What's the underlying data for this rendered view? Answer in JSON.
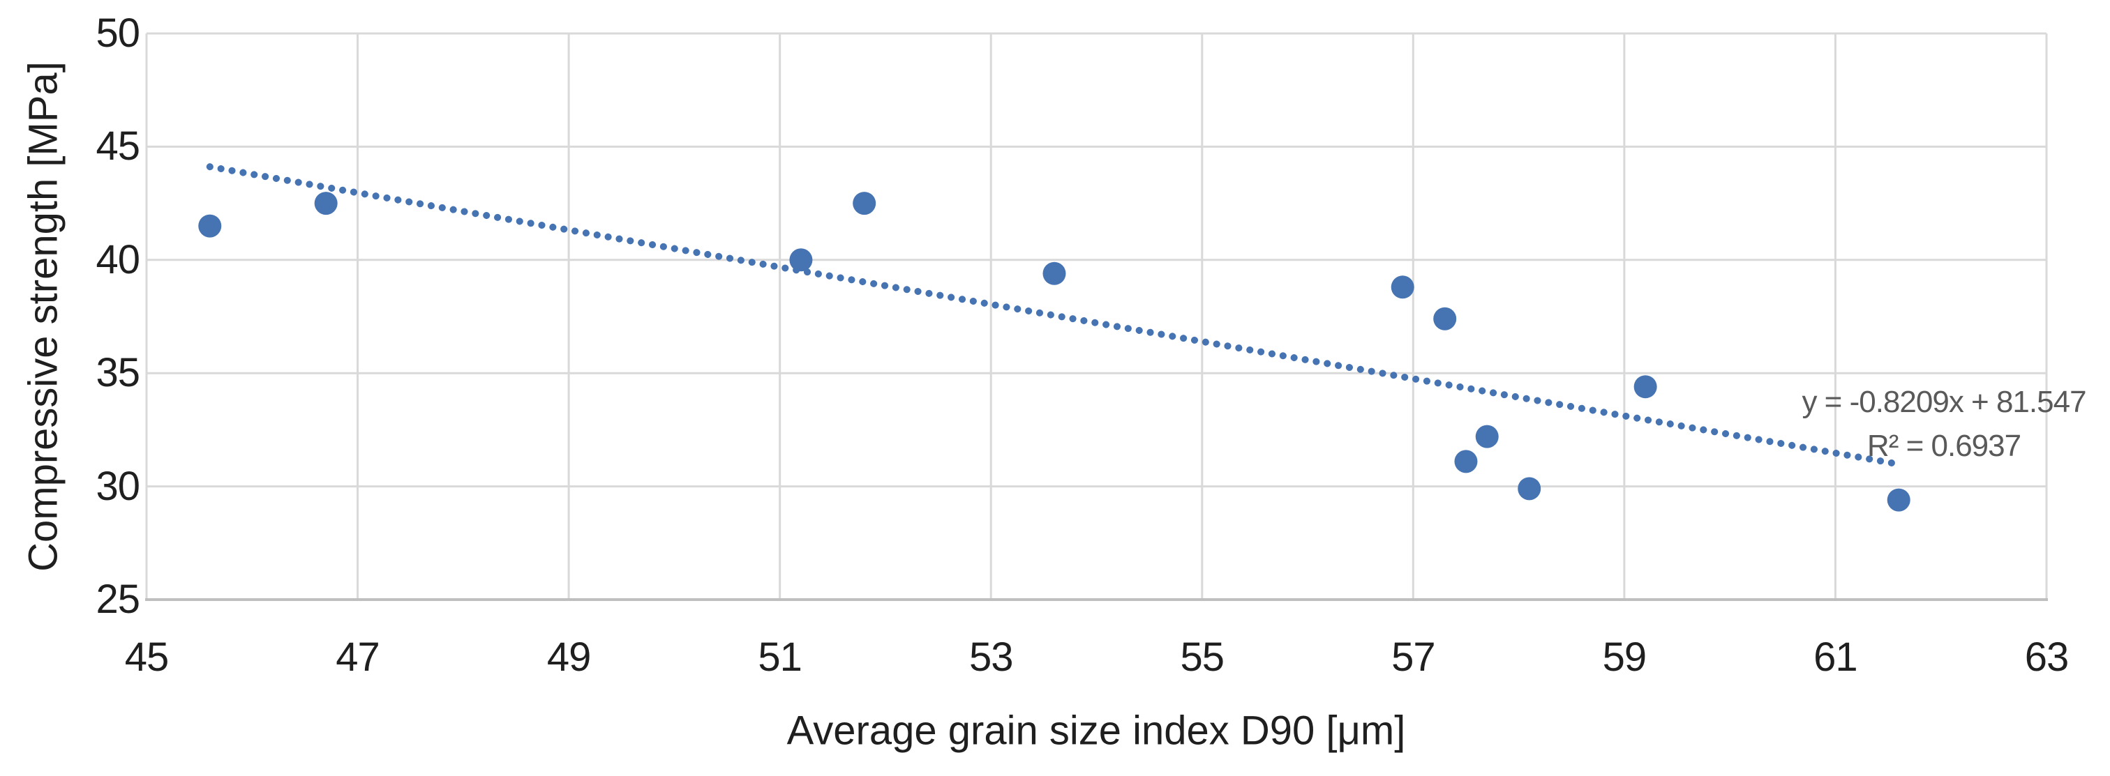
{
  "chart_data": {
    "type": "scatter",
    "title": "",
    "xlabel": "Average grain size index D90 [μm]",
    "ylabel": "Compressive strength [MPa]",
    "xlim": [
      45,
      63
    ],
    "ylim": [
      25,
      50
    ],
    "x_ticks": [
      45,
      47,
      49,
      51,
      53,
      55,
      57,
      59,
      61,
      63
    ],
    "y_ticks": [
      25,
      30,
      35,
      40,
      45,
      50
    ],
    "grid": true,
    "legend": "none",
    "points": [
      [
        45.6,
        41.5
      ],
      [
        46.7,
        42.5
      ],
      [
        51.2,
        40.0
      ],
      [
        51.8,
        42.5
      ],
      [
        53.6,
        39.4
      ],
      [
        56.9,
        38.8
      ],
      [
        57.3,
        37.4
      ],
      [
        57.5,
        31.1
      ],
      [
        57.7,
        32.2
      ],
      [
        58.1,
        29.9
      ],
      [
        59.2,
        34.4
      ],
      [
        61.6,
        29.4
      ]
    ],
    "trendline": {
      "slope": -0.8209,
      "intercept": 81.547,
      "x_start": 45.6,
      "x_end": 61.6,
      "style": "dotted",
      "equation_label": "y = -0.8209x + 81.547",
      "r_squared_label": "R² = 0.6937"
    },
    "colors": {
      "marker": "#4673B2",
      "trendline": "#4673B2",
      "gridline": "#D9D9D9",
      "axis_line": "#BFBFBF",
      "tick_text": "#1f1f1f",
      "annotation_text": "#595959"
    }
  }
}
